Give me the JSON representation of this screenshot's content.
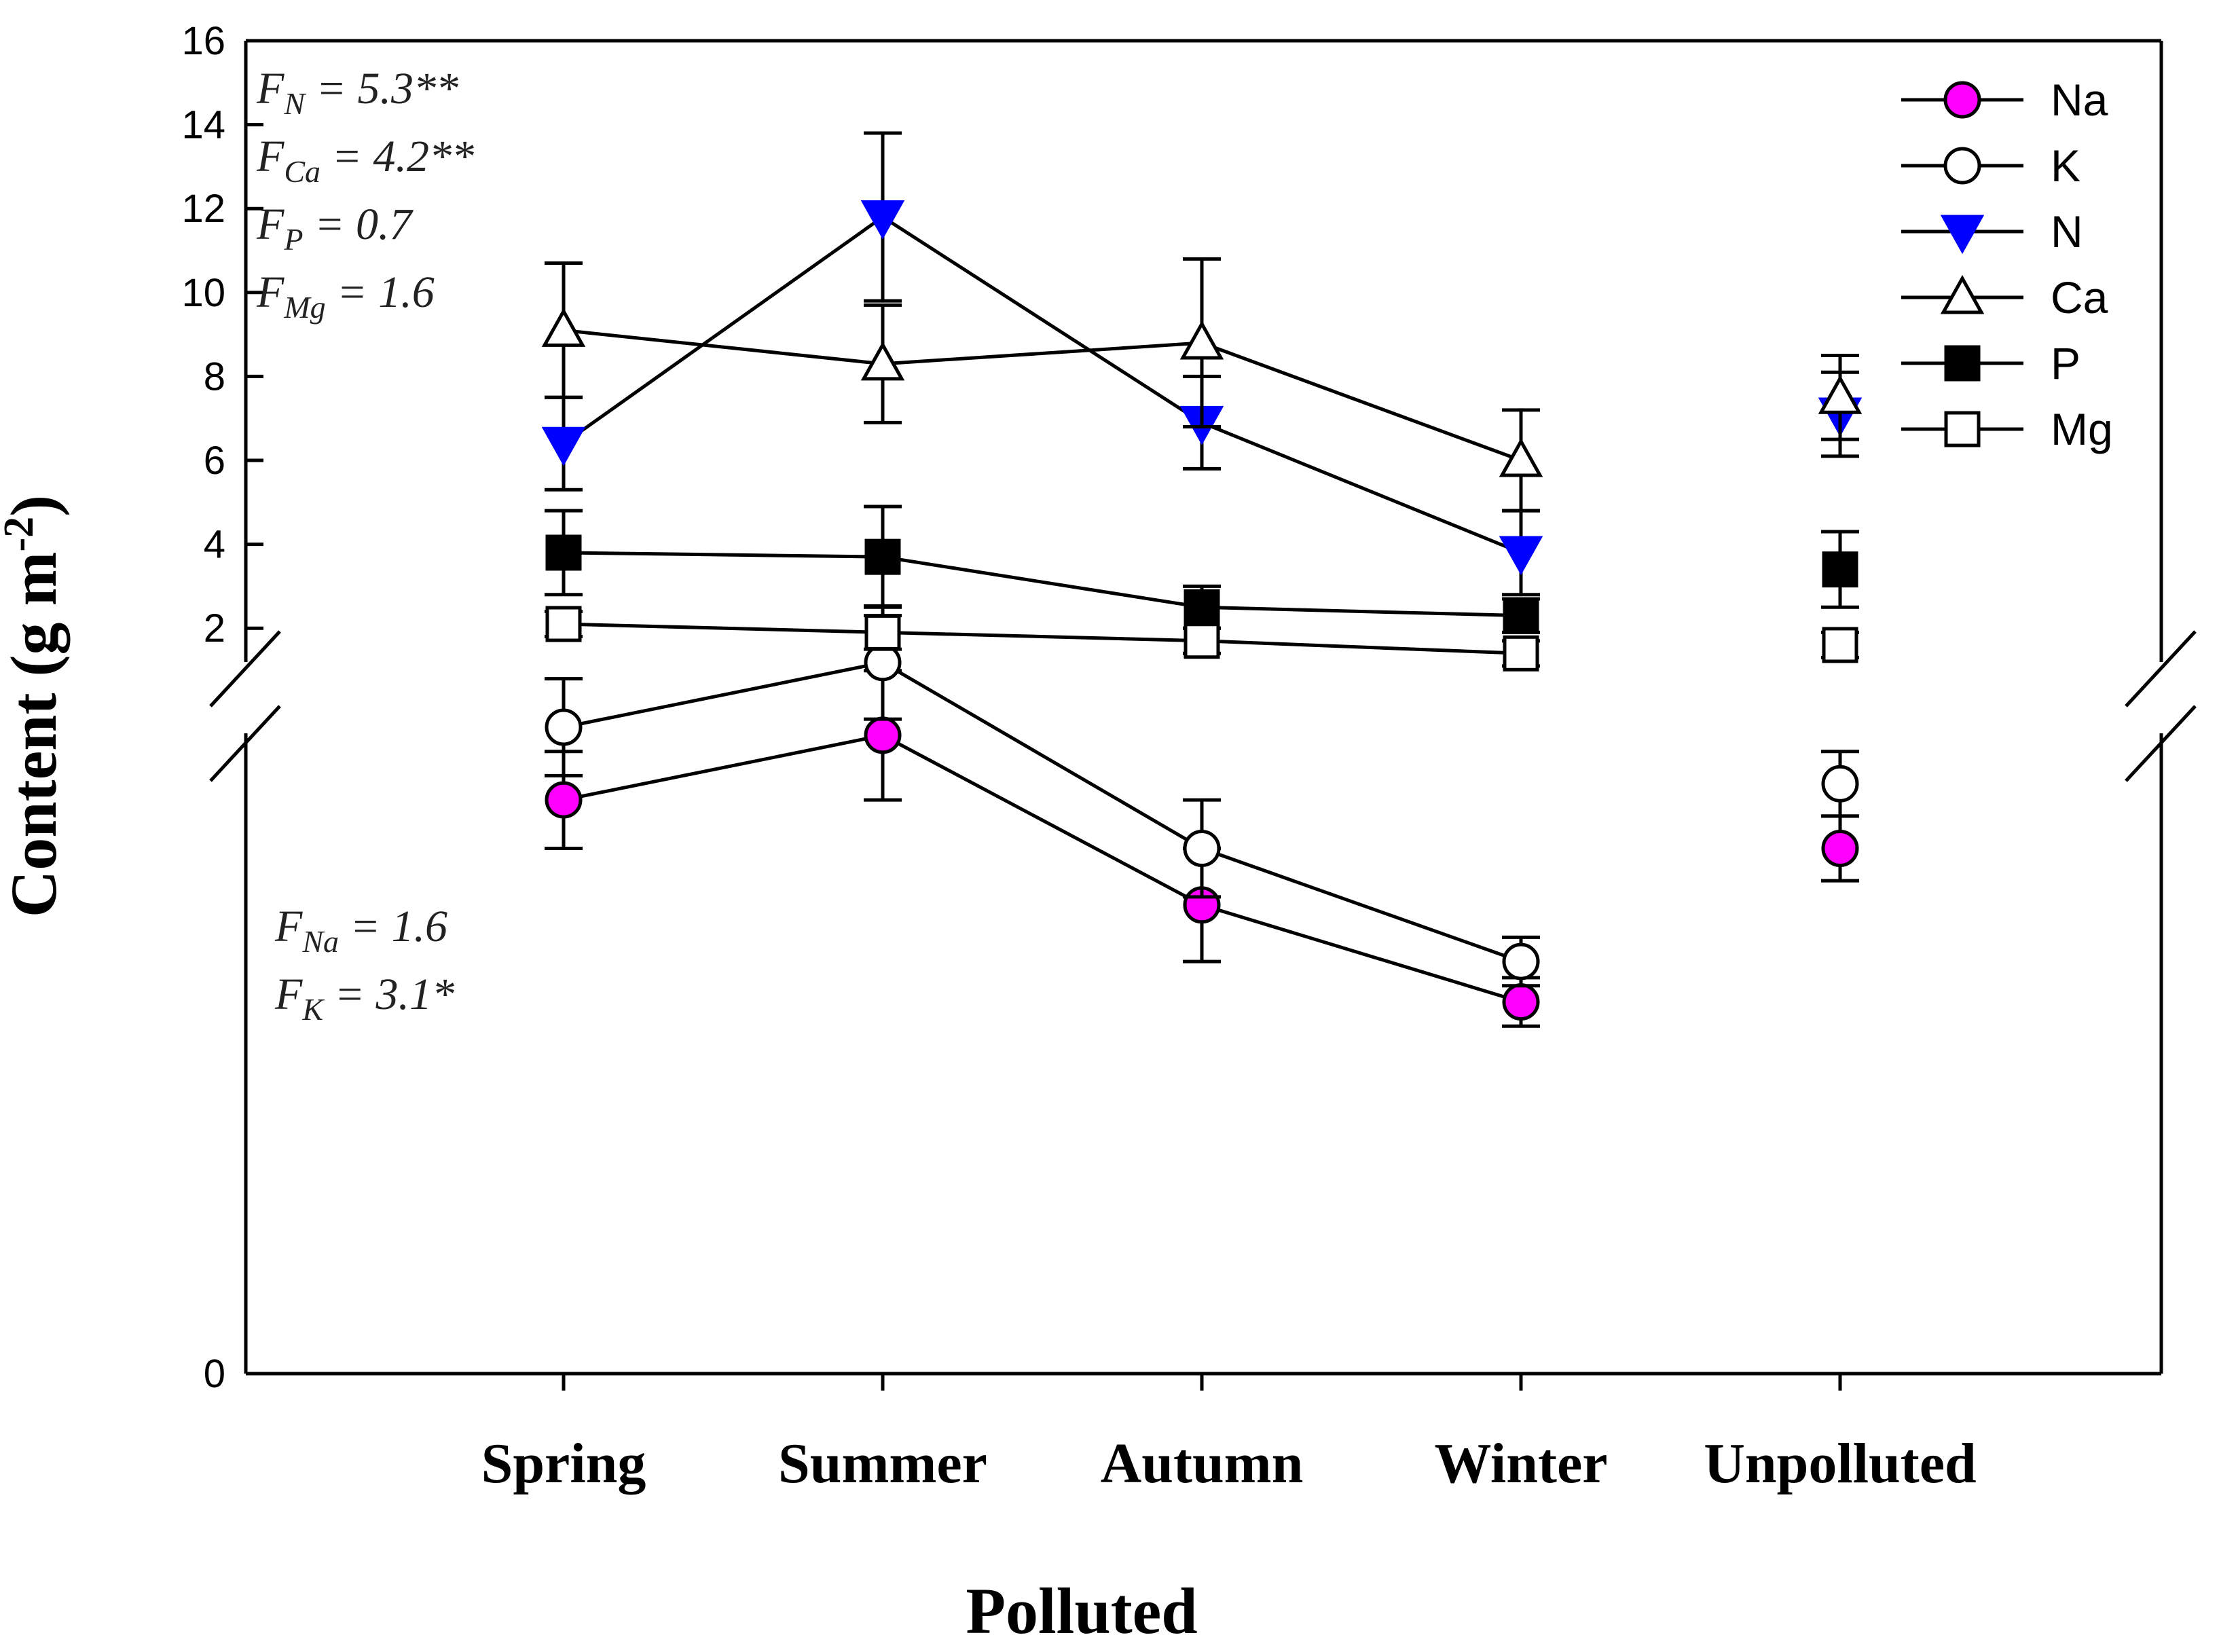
{
  "chart_data": {
    "type": "line",
    "title": "",
    "xlabel": "Polluted",
    "ylabel": {
      "text": "Content (g m",
      "sup": "-2",
      "close": ")"
    },
    "categories": [
      "Spring",
      "Summer",
      "Autumn",
      "Winter",
      "Unpolluted"
    ],
    "connected_categories": 4,
    "ylim_upper_panel": [
      0,
      16
    ],
    "upper_ticks": [
      "16",
      "14",
      "12",
      "10",
      "8",
      "6",
      "4",
      "2"
    ],
    "upper_tick_values": [
      16,
      14,
      12,
      10,
      8,
      6,
      4,
      2
    ],
    "lower_ticks": [
      "0"
    ],
    "axis_break": true,
    "series": [
      {
        "name": "Na",
        "label": "Na",
        "panel": "lower",
        "marker": "circle",
        "fill": "#ff00ff",
        "values": [
          0.71,
          0.79,
          0.58,
          0.46,
          0.65
        ],
        "errors": [
          0.06,
          0.08,
          0.07,
          0.03,
          0.04
        ]
      },
      {
        "name": "K",
        "label": "K",
        "panel": "lower",
        "marker": "circle",
        "fill": "#ffffff",
        "values": [
          0.8,
          0.88,
          0.65,
          0.51,
          0.73
        ],
        "errors": [
          0.06,
          0.07,
          0.06,
          0.03,
          0.04
        ]
      },
      {
        "name": "N",
        "label": "N",
        "panel": "upper",
        "marker": "triangle-down",
        "fill": "#0000ff",
        "values": [
          6.4,
          11.8,
          6.9,
          3.8,
          7.1
        ],
        "errors": [
          1.1,
          2.0,
          1.1,
          1.0,
          1.0
        ]
      },
      {
        "name": "Ca",
        "label": "Ca",
        "panel": "upper",
        "marker": "triangle-up",
        "fill": "#ffffff",
        "values": [
          9.1,
          8.3,
          8.8,
          6.0,
          7.5
        ],
        "errors": [
          1.6,
          1.4,
          2.0,
          1.2,
          1.0
        ]
      },
      {
        "name": "P",
        "label": "P",
        "panel": "upper",
        "marker": "square",
        "fill": "#000000",
        "values": [
          3.8,
          3.7,
          2.5,
          2.3,
          3.4
        ],
        "errors": [
          1.0,
          1.2,
          0.5,
          0.4,
          0.9
        ]
      },
      {
        "name": "Mg",
        "label": "Mg",
        "panel": "upper",
        "marker": "square",
        "fill": "#ffffff",
        "values": [
          2.1,
          1.9,
          1.7,
          1.4,
          1.6
        ],
        "errors": [
          0.3,
          0.4,
          0.3,
          0.3,
          0.3
        ]
      }
    ],
    "annotations_upper": [
      {
        "f": "F",
        "sub": "N",
        "rest": " = 5.3**"
      },
      {
        "f": "F",
        "sub": "Ca",
        "rest": " = 4.2**"
      },
      {
        "f": "F",
        "sub": "P",
        "rest": " = 0.7"
      },
      {
        "f": "F",
        "sub": "Mg",
        "rest": " = 1.6"
      }
    ],
    "annotations_lower": [
      {
        "f": "F",
        "sub": "Na",
        "rest": " = 1.6"
      },
      {
        "f": "F",
        "sub": "K",
        "rest": " = 3.1*"
      }
    ],
    "legend_position": "top-right"
  }
}
